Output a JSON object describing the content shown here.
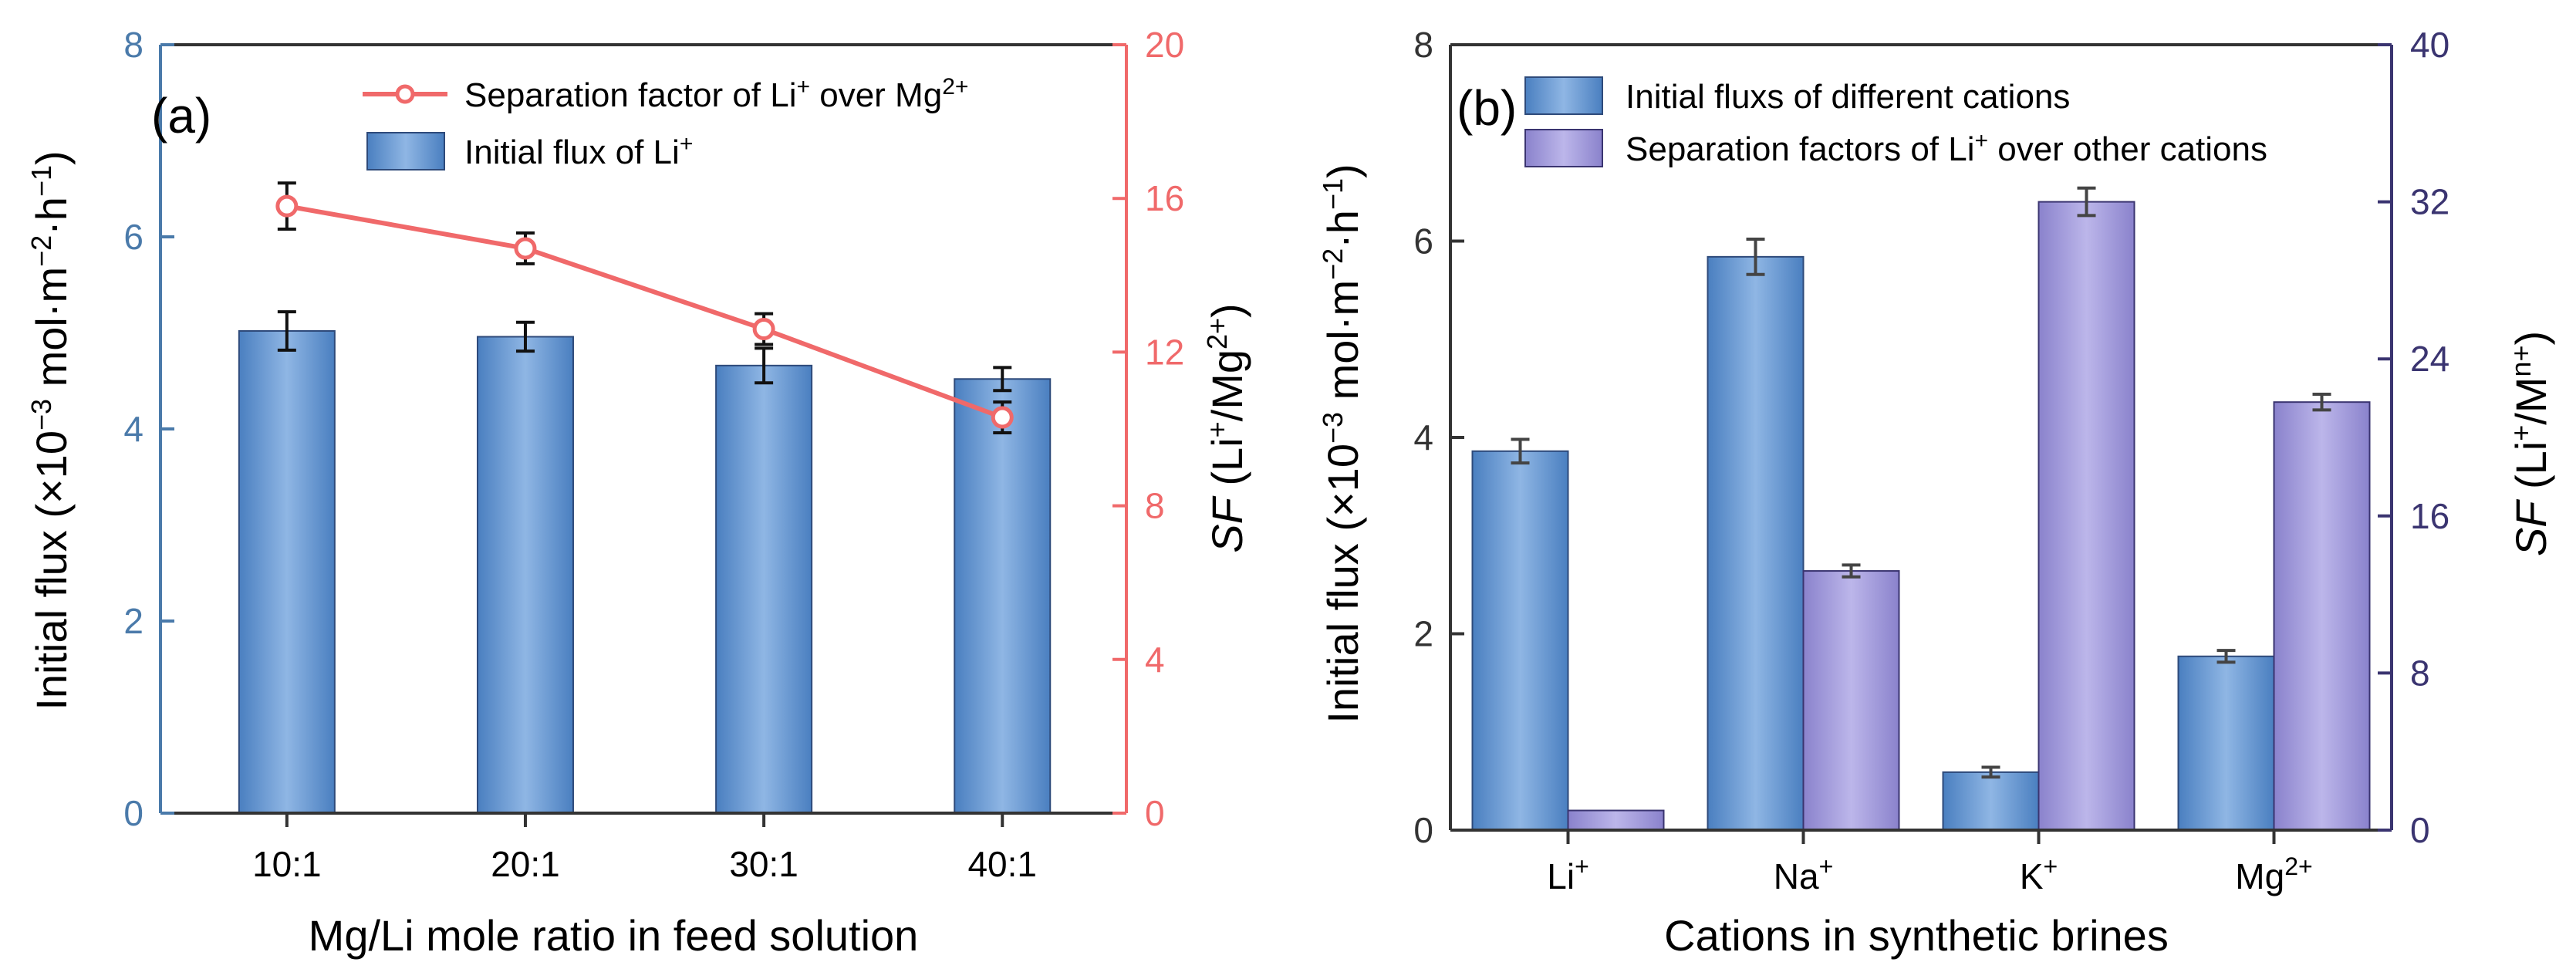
{
  "chart_data": [
    {
      "panel": "(a)",
      "type": "bar+line",
      "categories": [
        "10:1",
        "20:1",
        "30:1",
        "40:1"
      ],
      "xlabel": "Mg/Li mole ratio in feed solution",
      "ylabel_left": {
        "text": "Initial flux (×10",
        "sup1": "−3",
        "mid": " mol·m",
        "sup2": "−2",
        "mid2": "·h",
        "sup3": "−1",
        "end": ")"
      },
      "ylabel_right": {
        "italic": "SF",
        "text": " (Li",
        "sup1": "+",
        "mid": "/Mg",
        "sup2": "2+",
        "end": ")"
      },
      "ylim_left": [
        0,
        8
      ],
      "yticks_left": [
        0,
        2,
        4,
        6,
        8
      ],
      "ylim_right": [
        0,
        20
      ],
      "yticks_right": [
        0,
        4,
        8,
        12,
        16,
        20
      ],
      "series": [
        {
          "name": "Initial flux of Li+",
          "legend": {
            "text": "Initial flux of Li",
            "sup": "+"
          },
          "kind": "bar",
          "axis": "left",
          "values": [
            5.02,
            4.96,
            4.66,
            4.52
          ],
          "errors": [
            0.2,
            0.15,
            0.18,
            0.12
          ],
          "color": "#5a8fd0"
        },
        {
          "name": "Separation factor of Li+ over Mg2+",
          "legend": {
            "text": "Separation factor of Li",
            "sup1": "+",
            "mid": " over Mg",
            "sup2": "2+"
          },
          "kind": "line",
          "axis": "right",
          "values": [
            15.8,
            14.7,
            12.6,
            10.3
          ],
          "errors": [
            0.6,
            0.4,
            0.4,
            0.4
          ],
          "color": "#f0696a"
        }
      ],
      "legend_position": "top-right"
    },
    {
      "panel": "(b)",
      "type": "grouped-bar",
      "categories": [
        {
          "text": "Li",
          "sup": "+"
        },
        {
          "text": "Na",
          "sup": "+"
        },
        {
          "text": "K",
          "sup": "+"
        },
        {
          "text": "Mg",
          "sup": "2+"
        }
      ],
      "xlabel": "Cations in synthetic brines",
      "ylabel_left": {
        "text": "Initial flux (×10",
        "sup1": "−3",
        "mid": " mol·m",
        "sup2": "−2",
        "mid2": "·h",
        "sup3": "−1",
        "end": ")"
      },
      "ylabel_right": {
        "italic": "SF",
        "text": " (Li",
        "sup1": "+",
        "mid": "/M",
        "sup2": "n+",
        "end": ")"
      },
      "ylim_left": [
        0,
        8
      ],
      "yticks_left": [
        0,
        2,
        4,
        6,
        8
      ],
      "ylim_right": [
        0,
        40
      ],
      "yticks_right": [
        0,
        8,
        16,
        24,
        32,
        40
      ],
      "series": [
        {
          "name": "Initial fluxs of different cations",
          "kind": "bar",
          "axis": "left",
          "values": [
            3.86,
            5.84,
            0.59,
            1.77
          ],
          "errors": [
            0.12,
            0.18,
            0.05,
            0.06
          ],
          "color": "#5a8fd0"
        },
        {
          "name": "Separation factors of Li+ over other cations",
          "legend": {
            "text": "Separation factors of Li",
            "sup": "+",
            "end": " over other cations"
          },
          "kind": "bar",
          "axis": "right",
          "values": [
            1.0,
            13.2,
            32.0,
            21.8
          ],
          "errors": [
            0,
            0.3,
            0.7,
            0.4
          ],
          "color": "#9b94d8"
        }
      ],
      "legend_position": "top-left"
    }
  ]
}
